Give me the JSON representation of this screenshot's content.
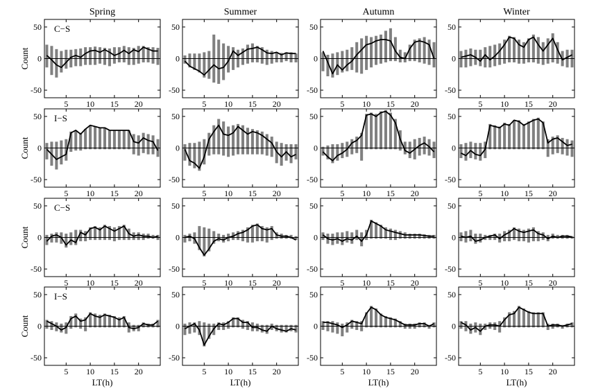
{
  "figure": {
    "seasons": [
      "Spring",
      "Summer",
      "Autumn",
      "Winter"
    ],
    "row_labels": [
      "C−S",
      "I−S",
      "C−S",
      "I−S"
    ],
    "ylabel": "Count",
    "xlabel": "LT(h)"
  },
  "chart_data": {
    "type": "bar+line",
    "layout": "4 rows x 4 columns small multiples",
    "columns": [
      "Spring",
      "Summer",
      "Autumn",
      "Winter"
    ],
    "rows": [
      "C−S",
      "I−S",
      "C−S",
      "I−S"
    ],
    "x": [
      1,
      2,
      3,
      4,
      5,
      6,
      7,
      8,
      9,
      10,
      11,
      12,
      13,
      14,
      15,
      16,
      17,
      18,
      19,
      20,
      21,
      22,
      23,
      24
    ],
    "xlim": [
      0.5,
      24.5
    ],
    "ylim": [
      -62,
      62
    ],
    "xticks": [
      5,
      10,
      15,
      20
    ],
    "yticks": [
      -50,
      0,
      50
    ],
    "series_styles": {
      "bars": "#808080",
      "line": "#000000"
    },
    "panels": [
      {
        "row": 0,
        "col": 0,
        "line": [
          5,
          -2,
          -10,
          -14,
          -6,
          2,
          5,
          2,
          8,
          12,
          13,
          10,
          14,
          10,
          5,
          8,
          13,
          8,
          14,
          11,
          18,
          15,
          12,
          12
        ],
        "bars_up": [
          22,
          20,
          15,
          12,
          14,
          14,
          15,
          16,
          18,
          18,
          19,
          18,
          17,
          16,
          18,
          18,
          20,
          18,
          17,
          20,
          20,
          18,
          18,
          17
        ],
        "bars_down": [
          -14,
          -26,
          -30,
          -22,
          -16,
          -14,
          -12,
          -12,
          -10,
          -10,
          -10,
          -8,
          -10,
          -12,
          -8,
          -6,
          -6,
          -10,
          -10,
          -8,
          -6,
          -6,
          -8,
          -10
        ]
      },
      {
        "row": 0,
        "col": 1,
        "line": [
          -4,
          -12,
          -16,
          -20,
          -26,
          -18,
          -10,
          -16,
          -14,
          -4,
          12,
          5,
          10,
          15,
          16,
          18,
          14,
          9,
          8,
          10,
          6,
          9,
          8,
          8
        ],
        "bars_up": [
          5,
          8,
          8,
          8,
          10,
          12,
          38,
          30,
          24,
          20,
          18,
          14,
          16,
          22,
          24,
          20,
          18,
          14,
          12,
          10,
          9,
          10,
          10,
          8
        ],
        "bars_down": [
          -8,
          -14,
          -18,
          -22,
          -30,
          -32,
          -38,
          -40,
          -34,
          -22,
          -18,
          -14,
          -10,
          -8,
          -6,
          -6,
          -8,
          -10,
          -8,
          -6,
          -6,
          -4,
          -6,
          -6
        ]
      },
      {
        "row": 0,
        "col": 2,
        "line": [
          12,
          -6,
          -24,
          -10,
          -18,
          -10,
          -4,
          6,
          14,
          22,
          24,
          28,
          30,
          30,
          28,
          12,
          2,
          0,
          16,
          26,
          28,
          26,
          22,
          0
        ],
        "bars_up": [
          10,
          6,
          8,
          10,
          12,
          14,
          18,
          26,
          32,
          36,
          34,
          36,
          38,
          44,
          48,
          34,
          14,
          10,
          22,
          30,
          32,
          34,
          30,
          26
        ],
        "bars_down": [
          -20,
          -28,
          -30,
          -26,
          -22,
          -20,
          -18,
          -22,
          -24,
          -18,
          -14,
          -10,
          -8,
          -6,
          -4,
          -4,
          -6,
          -6,
          -4,
          -4,
          -6,
          -8,
          -10,
          -14
        ]
      },
      {
        "row": 0,
        "col": 3,
        "line": [
          2,
          4,
          6,
          2,
          -4,
          6,
          -2,
          4,
          12,
          22,
          34,
          32,
          22,
          18,
          30,
          34,
          22,
          12,
          22,
          32,
          14,
          -2,
          2,
          6
        ],
        "bars_up": [
          12,
          14,
          16,
          14,
          14,
          18,
          20,
          22,
          24,
          30,
          36,
          34,
          30,
          26,
          32,
          38,
          34,
          26,
          32,
          40,
          26,
          12,
          14,
          14
        ],
        "bars_down": [
          -14,
          -14,
          -12,
          -10,
          -12,
          -14,
          -14,
          -12,
          -10,
          -8,
          -6,
          -6,
          -8,
          -8,
          -6,
          -6,
          -8,
          -10,
          -8,
          -6,
          -8,
          -12,
          -14,
          -14
        ]
      },
      {
        "row": 1,
        "col": 0,
        "line": [
          -2,
          -10,
          -18,
          -14,
          -10,
          24,
          28,
          22,
          30,
          36,
          34,
          32,
          32,
          28,
          28,
          28,
          28,
          28,
          10,
          8,
          16,
          12,
          10,
          -4
        ],
        "bars_up": [
          8,
          10,
          10,
          12,
          14,
          26,
          28,
          24,
          30,
          36,
          34,
          32,
          32,
          28,
          28,
          28,
          28,
          28,
          22,
          20,
          24,
          22,
          20,
          14
        ],
        "bars_down": [
          -18,
          -28,
          -34,
          -26,
          -20,
          -6,
          -4,
          -4,
          -2,
          -2,
          -2,
          -2,
          -2,
          -2,
          -2,
          -2,
          -2,
          -2,
          -10,
          -12,
          -8,
          -10,
          -10,
          -14
        ]
      },
      {
        "row": 1,
        "col": 1,
        "line": [
          -2,
          -20,
          -24,
          -32,
          -14,
          14,
          26,
          36,
          22,
          20,
          24,
          34,
          28,
          22,
          26,
          24,
          20,
          14,
          8,
          -6,
          -14,
          -6,
          -14,
          -10
        ],
        "bars_up": [
          6,
          8,
          8,
          10,
          14,
          24,
          36,
          46,
          42,
          34,
          36,
          38,
          36,
          32,
          30,
          28,
          26,
          22,
          18,
          10,
          8,
          6,
          6,
          6
        ],
        "bars_down": [
          -20,
          -28,
          -32,
          -36,
          -26,
          -12,
          -10,
          -10,
          -12,
          -14,
          -12,
          -10,
          -10,
          -10,
          -10,
          -10,
          -10,
          -12,
          -14,
          -24,
          -28,
          -20,
          -24,
          -18
        ]
      },
      {
        "row": 1,
        "col": 2,
        "line": [
          -6,
          -14,
          -20,
          -12,
          -8,
          -2,
          8,
          12,
          20,
          52,
          54,
          50,
          56,
          58,
          52,
          40,
          14,
          -4,
          -8,
          -2,
          4,
          8,
          2,
          -6
        ],
        "bars_up": [
          2,
          4,
          6,
          6,
          8,
          10,
          14,
          18,
          24,
          54,
          56,
          54,
          58,
          60,
          56,
          46,
          28,
          10,
          10,
          14,
          16,
          18,
          14,
          10
        ],
        "bars_down": [
          -12,
          -18,
          -24,
          -20,
          -16,
          -14,
          -10,
          -8,
          -20,
          -2,
          -2,
          -2,
          -2,
          -2,
          -2,
          -2,
          -4,
          -10,
          -16,
          -18,
          -12,
          -10,
          -12,
          -16
        ]
      },
      {
        "row": 1,
        "col": 3,
        "line": [
          -8,
          -12,
          -4,
          -10,
          -12,
          -2,
          36,
          34,
          32,
          38,
          36,
          44,
          42,
          36,
          40,
          44,
          46,
          40,
          8,
          14,
          16,
          10,
          4,
          6
        ],
        "bars_up": [
          6,
          8,
          10,
          8,
          8,
          10,
          38,
          36,
          34,
          40,
          38,
          44,
          44,
          38,
          42,
          46,
          48,
          42,
          14,
          18,
          20,
          16,
          14,
          12
        ],
        "bars_down": [
          -16,
          -20,
          -16,
          -18,
          -20,
          -16,
          -2,
          -2,
          -2,
          -2,
          -2,
          -2,
          -2,
          -2,
          -2,
          -2,
          -2,
          -2,
          -14,
          -10,
          -8,
          -10,
          -12,
          -14
        ]
      },
      {
        "row": 2,
        "col": 0,
        "line": [
          -6,
          2,
          4,
          0,
          -12,
          -4,
          -8,
          8,
          4,
          14,
          16,
          12,
          18,
          14,
          10,
          14,
          18,
          6,
          2,
          4,
          2,
          2,
          0,
          2
        ],
        "bars_up": [
          4,
          6,
          8,
          8,
          6,
          8,
          12,
          12,
          10,
          16,
          18,
          16,
          20,
          18,
          16,
          18,
          20,
          14,
          8,
          8,
          6,
          6,
          4,
          4
        ],
        "bars_down": [
          -12,
          -8,
          -8,
          -10,
          -16,
          -12,
          -12,
          -6,
          -6,
          -4,
          -4,
          -4,
          -4,
          -4,
          -6,
          -4,
          -4,
          -4,
          -4,
          -4,
          -4,
          -2,
          -2,
          -4
        ]
      },
      {
        "row": 2,
        "col": 1,
        "line": [
          0,
          2,
          -2,
          -16,
          -28,
          -18,
          -6,
          -2,
          -4,
          0,
          2,
          6,
          8,
          12,
          18,
          20,
          14,
          12,
          14,
          4,
          2,
          2,
          0,
          -4
        ],
        "bars_up": [
          4,
          6,
          8,
          18,
          16,
          14,
          10,
          6,
          4,
          6,
          8,
          10,
          12,
          16,
          20,
          22,
          18,
          16,
          18,
          8,
          6,
          4,
          4,
          2
        ],
        "bars_down": [
          -8,
          -6,
          -10,
          -20,
          -30,
          -22,
          -10,
          -6,
          -8,
          -6,
          -4,
          -4,
          -6,
          -8,
          -8,
          -6,
          -6,
          -8,
          -4,
          -2,
          -2,
          -2,
          -2,
          -4
        ]
      },
      {
        "row": 2,
        "col": 2,
        "line": [
          4,
          -2,
          -4,
          -2,
          -6,
          -2,
          -4,
          2,
          -6,
          4,
          26,
          22,
          18,
          12,
          10,
          8,
          6,
          4,
          4,
          4,
          4,
          3,
          2,
          2
        ],
        "bars_up": [
          8,
          6,
          6,
          8,
          8,
          10,
          8,
          12,
          8,
          12,
          28,
          24,
          20,
          16,
          14,
          12,
          10,
          8,
          6,
          6,
          6,
          5,
          4,
          4
        ],
        "bars_down": [
          -4,
          -10,
          -12,
          -10,
          -12,
          -8,
          -10,
          -4,
          -14,
          -4,
          -2,
          -2,
          -2,
          -2,
          -4,
          -4,
          -2,
          -2,
          -2,
          -2,
          -2,
          -2,
          -2,
          -2
        ]
      },
      {
        "row": 2,
        "col": 3,
        "line": [
          2,
          0,
          2,
          -6,
          -4,
          0,
          2,
          4,
          -2,
          4,
          8,
          14,
          10,
          8,
          10,
          12,
          6,
          4,
          -2,
          2,
          0,
          2,
          2,
          1
        ],
        "bars_up": [
          8,
          10,
          12,
          6,
          6,
          4,
          4,
          6,
          6,
          10,
          12,
          16,
          14,
          12,
          14,
          16,
          10,
          8,
          4,
          6,
          4,
          4,
          4,
          2
        ],
        "bars_down": [
          -6,
          -8,
          -6,
          -10,
          -8,
          -4,
          -4,
          -4,
          -8,
          -6,
          -6,
          -4,
          -6,
          -6,
          -8,
          -6,
          -6,
          -4,
          -6,
          -2,
          -2,
          -2,
          -2,
          -2
        ]
      },
      {
        "row": 3,
        "col": 0,
        "line": [
          8,
          4,
          0,
          -6,
          -2,
          12,
          16,
          8,
          10,
          20,
          16,
          14,
          18,
          16,
          14,
          10,
          14,
          -2,
          -4,
          -2,
          4,
          2,
          2,
          8
        ],
        "bars_up": [
          10,
          8,
          6,
          4,
          6,
          16,
          20,
          12,
          14,
          22,
          20,
          18,
          20,
          18,
          16,
          14,
          16,
          6,
          2,
          2,
          6,
          4,
          4,
          10
        ],
        "bars_down": [
          -4,
          -6,
          -8,
          -10,
          -12,
          -4,
          -2,
          -4,
          -8,
          -2,
          -2,
          -2,
          -2,
          -2,
          -2,
          -2,
          -2,
          -10,
          -8,
          -8,
          -2,
          -2,
          -2,
          -2
        ]
      },
      {
        "row": 3,
        "col": 1,
        "line": [
          -4,
          0,
          4,
          -6,
          -30,
          -16,
          -4,
          4,
          2,
          6,
          12,
          12,
          6,
          6,
          -2,
          -2,
          -6,
          -8,
          0,
          -4,
          -6,
          -8,
          -4,
          -6
        ],
        "bars_up": [
          4,
          6,
          6,
          8,
          6,
          4,
          4,
          6,
          6,
          8,
          14,
          14,
          10,
          8,
          6,
          4,
          2,
          2,
          4,
          2,
          2,
          2,
          2,
          2
        ],
        "bars_down": [
          -14,
          -12,
          -10,
          -14,
          -32,
          -20,
          -14,
          -6,
          -6,
          -4,
          -2,
          -2,
          -4,
          -6,
          -8,
          -8,
          -10,
          -12,
          -6,
          -8,
          -10,
          -10,
          -8,
          -10
        ]
      },
      {
        "row": 3,
        "col": 2,
        "line": [
          6,
          6,
          4,
          2,
          -2,
          2,
          8,
          6,
          4,
          20,
          30,
          26,
          18,
          14,
          12,
          10,
          6,
          2,
          2,
          2,
          4,
          4,
          0,
          4
        ],
        "bars_up": [
          8,
          8,
          8,
          6,
          4,
          6,
          10,
          8,
          8,
          22,
          32,
          28,
          20,
          16,
          14,
          12,
          8,
          4,
          4,
          4,
          6,
          6,
          2,
          6
        ],
        "bars_down": [
          -6,
          -8,
          -10,
          -12,
          -16,
          -10,
          -4,
          -6,
          -8,
          -2,
          -2,
          -2,
          -2,
          -2,
          -2,
          -2,
          -2,
          -4,
          -4,
          -4,
          -2,
          -2,
          -4,
          -2
        ]
      },
      {
        "row": 3,
        "col": 3,
        "line": [
          6,
          2,
          -6,
          -2,
          -8,
          0,
          2,
          2,
          0,
          10,
          18,
          20,
          30,
          26,
          22,
          20,
          20,
          20,
          0,
          2,
          2,
          0,
          2,
          4
        ],
        "bars_up": [
          8,
          8,
          4,
          6,
          4,
          4,
          6,
          6,
          8,
          14,
          22,
          24,
          32,
          28,
          24,
          22,
          22,
          22,
          4,
          4,
          4,
          2,
          4,
          6
        ],
        "bars_down": [
          -4,
          -8,
          -12,
          -10,
          -14,
          -6,
          -4,
          -6,
          -10,
          -2,
          -2,
          -2,
          -2,
          -2,
          -2,
          -2,
          -2,
          -2,
          -6,
          -4,
          -2,
          -4,
          -2,
          -2
        ]
      }
    ]
  }
}
